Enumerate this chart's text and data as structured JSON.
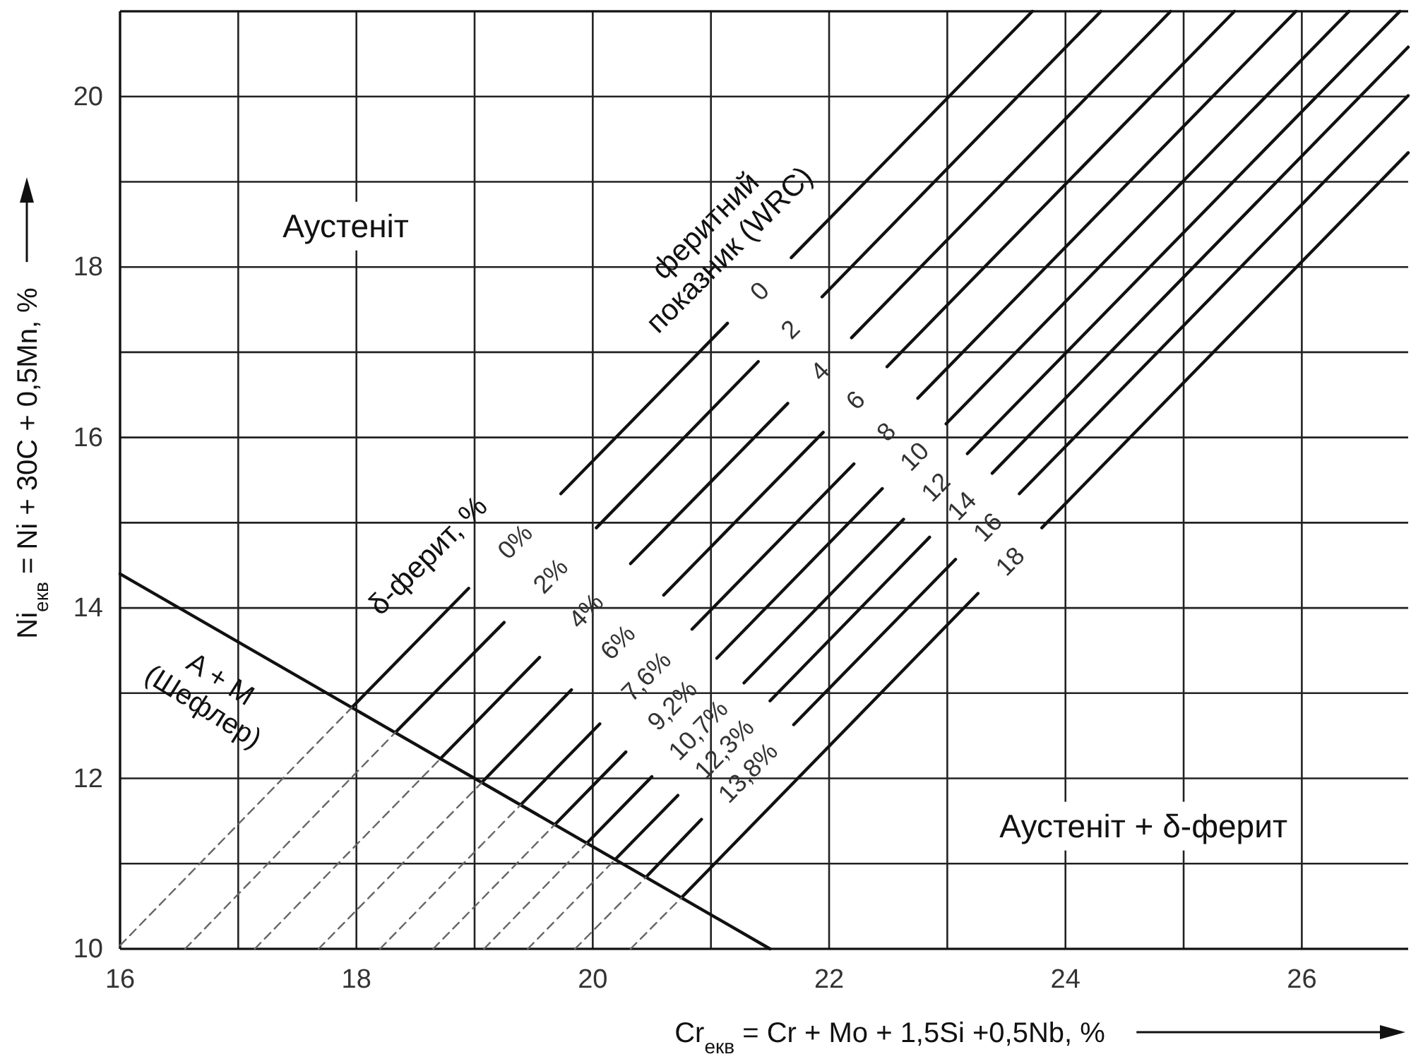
{
  "chart_data": {
    "type": "line",
    "xlabel": "Cr$_{екв}$ = Cr + Mo + 1,5Si +0,5Nb, %",
    "ylabel": "Ni$_{екв}$ = Ni + 30C + 0,5Mn, %",
    "xlim": [
      16,
      26.9
    ],
    "ylim": [
      10,
      21
    ],
    "xticks": [
      16,
      {
        "value": 17,
        "label": null
      },
      18,
      {
        "value": 19,
        "label": null
      },
      20,
      {
        "value": 21,
        "label": null
      },
      22,
      {
        "value": 23,
        "label": null
      },
      24,
      {
        "value": 25,
        "label": null
      },
      26
    ],
    "yticks": [
      10,
      {
        "value": 11,
        "label": null
      },
      12,
      {
        "value": 13,
        "label": null
      },
      14,
      {
        "value": 15,
        "label": null
      },
      16,
      {
        "value": 17,
        "label": null
      },
      18,
      {
        "value": 19,
        "label": null
      },
      20,
      {
        "value": 21,
        "label": null
      }
    ],
    "grid": true,
    "marker": "none",
    "series": [
      {
        "color": "#111111",
        "line_style": "solid",
        "x": [
          16,
          21.5
        ],
        "values": [
          14.4,
          10
        ]
      },
      {
        "color": "#111111",
        "line_style": "solid",
        "x": [
          17.96,
          18.95,
          null,
          19.73,
          21.14,
          null,
          21.68,
          23.72
        ],
        "values": [
          12.83,
          14.23,
          null,
          15.34,
          17.34,
          null,
          18.11,
          21
        ]
      },
      {
        "color": "#111111",
        "line_style": "solid",
        "x": [
          18.33,
          19.25,
          null,
          20.03,
          21.4,
          null,
          21.94,
          24.3
        ],
        "values": [
          12.54,
          13.83,
          null,
          14.94,
          16.89,
          null,
          17.65,
          21
        ]
      },
      {
        "color": "#111111",
        "line_style": "solid",
        "x": [
          18.71,
          19.55,
          null,
          20.32,
          21.65,
          null,
          22.19,
          24.89
        ],
        "values": [
          12.23,
          13.42,
          null,
          14.52,
          16.4,
          null,
          17.17,
          21
        ]
      },
      {
        "color": "#111111",
        "line_style": "solid",
        "x": [
          19.06,
          19.82,
          null,
          20.6,
          21.95,
          null,
          22.49,
          25.43
        ],
        "values": [
          11.95,
          13.04,
          null,
          14.15,
          16.06,
          null,
          16.83,
          21
        ]
      },
      {
        "color": "#111111",
        "line_style": "solid",
        "x": [
          19.39,
          20.06,
          null,
          20.84,
          22.21,
          null,
          22.75,
          25.95
        ],
        "values": [
          11.69,
          12.64,
          null,
          13.75,
          15.69,
          null,
          16.46,
          21
        ]
      },
      {
        "color": "#111111",
        "line_style": "solid",
        "x": [
          19.68,
          20.28,
          null,
          21.05,
          22.45,
          null,
          22.99,
          26.4
        ],
        "values": [
          11.46,
          12.31,
          null,
          13.41,
          15.4,
          null,
          16.16,
          21
        ]
      },
      {
        "color": "#111111",
        "line_style": "solid",
        "x": [
          19.95,
          20.5,
          null,
          21.28,
          22.63,
          null,
          23.17,
          26.83
        ],
        "values": [
          11.24,
          12.02,
          null,
          13.12,
          15.04,
          null,
          15.81,
          21
        ]
      },
      {
        "color": "#111111",
        "line_style": "solid",
        "x": [
          20.19,
          20.72,
          null,
          21.5,
          22.85,
          null,
          23.38,
          26.9
        ],
        "values": [
          11.05,
          11.8,
          null,
          12.91,
          14.83,
          null,
          15.58,
          20.58
        ]
      },
      {
        "color": "#111111",
        "line_style": "solid",
        "x": [
          20.45,
          20.92,
          null,
          21.7,
          23.07,
          null,
          23.61,
          26.9
        ],
        "values": [
          10.84,
          11.52,
          null,
          12.63,
          14.57,
          null,
          15.34,
          20.01
        ]
      },
      {
        "color": "#111111",
        "line_style": "solid",
        "x": [
          20.75,
          23.26,
          null,
          23.8,
          26.9
        ],
        "values": [
          10.6,
          14.17,
          null,
          14.94,
          19.34
        ]
      },
      {
        "color": "#666666",
        "line_style": "dashed",
        "x": [
          16,
          17.96
        ],
        "values": [
          10.04,
          12.83
        ]
      },
      {
        "color": "#666666",
        "line_style": "dashed",
        "x": [
          16.55,
          18.33
        ],
        "values": [
          10,
          12.54
        ]
      },
      {
        "color": "#666666",
        "line_style": "dashed",
        "x": [
          17.14,
          18.71
        ],
        "values": [
          10,
          12.23
        ]
      },
      {
        "color": "#666666",
        "line_style": "dashed",
        "x": [
          17.68,
          19.06
        ],
        "values": [
          10,
          11.95
        ]
      },
      {
        "color": "#666666",
        "line_style": "dashed",
        "x": [
          18.2,
          19.39
        ],
        "values": [
          10,
          11.69
        ]
      },
      {
        "color": "#666666",
        "line_style": "dashed",
        "x": [
          18.65,
          19.68
        ],
        "values": [
          10,
          11.46
        ]
      },
      {
        "color": "#666666",
        "line_style": "dashed",
        "x": [
          19.08,
          19.95
        ],
        "values": [
          10,
          11.24
        ]
      },
      {
        "color": "#666666",
        "line_style": "dashed",
        "x": [
          19.45,
          20.19
        ],
        "values": [
          10,
          11.05
        ]
      },
      {
        "color": "#666666",
        "line_style": "dashed",
        "x": [
          19.85,
          20.45
        ],
        "values": [
          10,
          10.84
        ]
      },
      {
        "color": "#666666",
        "line_style": "dashed",
        "x": [
          20.32,
          20.75
        ],
        "values": [
          10,
          10.6
        ]
      }
    ],
    "annotations": [
      "Аустеніт",
      "Аустеніт + δ-ферит",
      "A + M\n(Шефлер)",
      "δ-ферит, %",
      "феритний\nпоказник (WRC)",
      "0%",
      "2%",
      "4%",
      "6%",
      "7,6%",
      "9,2%",
      "10,7%",
      "12,3%",
      "13,8%",
      "0",
      "2",
      "4",
      "6",
      "8",
      "10",
      "12",
      "14",
      "16",
      "18"
    ]
  }
}
